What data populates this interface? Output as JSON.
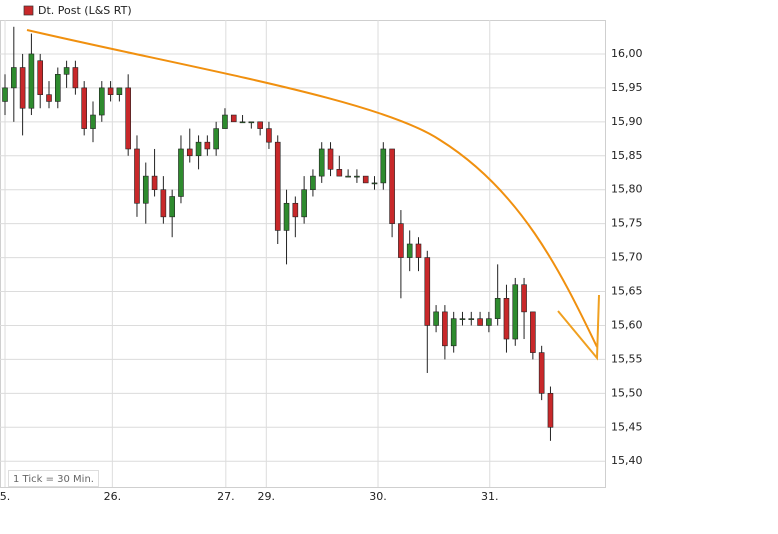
{
  "chart_data": {
    "type": "candlestick",
    "series_name": "Dt. Post (L&S RT)",
    "note": "1 Tick = 30 Min.",
    "up_color": "#2e8b2e",
    "down_color": "#c8282a",
    "legend_color": "#c8282a",
    "grid": true,
    "ylim": [
      15.362,
      16.05
    ],
    "xlim": [
      -0.57,
      68.2
    ],
    "yticks": [
      {
        "value": 15.4,
        "label": "15,40"
      },
      {
        "value": 15.45,
        "label": "15,45"
      },
      {
        "value": 15.5,
        "label": "15,50"
      },
      {
        "value": 15.55,
        "label": "15,55"
      },
      {
        "value": 15.6,
        "label": "15,60"
      },
      {
        "value": 15.65,
        "label": "15,65"
      },
      {
        "value": 15.7,
        "label": "15,70"
      },
      {
        "value": 15.75,
        "label": "15,75"
      },
      {
        "value": 15.8,
        "label": "15,80"
      },
      {
        "value": 15.85,
        "label": "15,85"
      },
      {
        "value": 15.9,
        "label": "15,90"
      },
      {
        "value": 15.95,
        "label": "15,95"
      },
      {
        "value": 16.0,
        "label": "16,00"
      }
    ],
    "xticks": [
      {
        "value": 0,
        "label": "5."
      },
      {
        "value": 12.2,
        "label": "26."
      },
      {
        "value": 25.1,
        "label": "27."
      },
      {
        "value": 29.7,
        "label": "29."
      },
      {
        "value": 42.4,
        "label": "30."
      },
      {
        "value": 55.1,
        "label": "31."
      }
    ],
    "ohlc": [
      [
        15.93,
        15.97,
        15.91,
        15.95
      ],
      [
        15.95,
        16.04,
        15.9,
        15.98
      ],
      [
        15.98,
        16.0,
        15.88,
        15.92
      ],
      [
        15.92,
        16.03,
        15.91,
        16.0
      ],
      [
        15.99,
        16.0,
        15.92,
        15.94
      ],
      [
        15.94,
        15.96,
        15.92,
        15.93
      ],
      [
        15.93,
        15.98,
        15.92,
        15.97
      ],
      [
        15.97,
        15.99,
        15.95,
        15.98
      ],
      [
        15.98,
        15.99,
        15.94,
        15.95
      ],
      [
        15.95,
        15.96,
        15.88,
        15.89
      ],
      [
        15.89,
        15.93,
        15.87,
        15.91
      ],
      [
        15.91,
        15.96,
        15.9,
        15.95
      ],
      [
        15.95,
        15.96,
        15.93,
        15.94
      ],
      [
        15.94,
        15.95,
        15.93,
        15.95
      ],
      [
        15.95,
        15.97,
        15.85,
        15.86
      ],
      [
        15.86,
        15.88,
        15.76,
        15.78
      ],
      [
        15.78,
        15.84,
        15.75,
        15.82
      ],
      [
        15.82,
        15.86,
        15.79,
        15.8
      ],
      [
        15.8,
        15.82,
        15.75,
        15.76
      ],
      [
        15.76,
        15.8,
        15.73,
        15.79
      ],
      [
        15.79,
        15.88,
        15.78,
        15.86
      ],
      [
        15.86,
        15.89,
        15.84,
        15.85
      ],
      [
        15.85,
        15.88,
        15.83,
        15.87
      ],
      [
        15.87,
        15.88,
        15.85,
        15.86
      ],
      [
        15.86,
        15.9,
        15.85,
        15.89
      ],
      [
        15.89,
        15.92,
        15.89,
        15.91
      ],
      [
        15.91,
        15.91,
        15.9,
        15.9
      ],
      [
        15.9,
        15.91,
        15.9,
        15.9
      ],
      [
        15.9,
        15.9,
        15.89,
        15.9
      ],
      [
        15.9,
        15.9,
        15.88,
        15.89
      ],
      [
        15.89,
        15.9,
        15.86,
        15.87
      ],
      [
        15.87,
        15.88,
        15.72,
        15.74
      ],
      [
        15.74,
        15.8,
        15.69,
        15.78
      ],
      [
        15.78,
        15.79,
        15.73,
        15.76
      ],
      [
        15.76,
        15.82,
        15.75,
        15.8
      ],
      [
        15.8,
        15.83,
        15.79,
        15.82
      ],
      [
        15.82,
        15.87,
        15.81,
        15.86
      ],
      [
        15.86,
        15.87,
        15.82,
        15.83
      ],
      [
        15.83,
        15.85,
        15.82,
        15.82
      ],
      [
        15.82,
        15.83,
        15.82,
        15.82
      ],
      [
        15.82,
        15.83,
        15.81,
        15.82
      ],
      [
        15.82,
        15.82,
        15.81,
        15.81
      ],
      [
        15.81,
        15.82,
        15.8,
        15.81
      ],
      [
        15.81,
        15.87,
        15.8,
        15.86
      ],
      [
        15.86,
        15.86,
        15.73,
        15.75
      ],
      [
        15.75,
        15.77,
        15.64,
        15.7
      ],
      [
        15.7,
        15.74,
        15.68,
        15.72
      ],
      [
        15.72,
        15.73,
        15.68,
        15.7
      ],
      [
        15.7,
        15.71,
        15.53,
        15.6
      ],
      [
        15.6,
        15.63,
        15.59,
        15.62
      ],
      [
        15.62,
        15.63,
        15.55,
        15.57
      ],
      [
        15.57,
        15.62,
        15.56,
        15.61
      ],
      [
        15.61,
        15.62,
        15.6,
        15.61
      ],
      [
        15.61,
        15.62,
        15.6,
        15.61
      ],
      [
        15.61,
        15.62,
        15.6,
        15.6
      ],
      [
        15.6,
        15.62,
        15.59,
        15.61
      ],
      [
        15.61,
        15.69,
        15.6,
        15.64
      ],
      [
        15.64,
        15.66,
        15.56,
        15.58
      ],
      [
        15.58,
        15.67,
        15.57,
        15.66
      ],
      [
        15.66,
        15.67,
        15.58,
        15.62
      ],
      [
        15.62,
        15.62,
        15.55,
        15.56
      ],
      [
        15.56,
        15.57,
        15.49,
        15.5
      ],
      [
        15.5,
        15.51,
        15.43,
        15.45
      ]
    ]
  }
}
